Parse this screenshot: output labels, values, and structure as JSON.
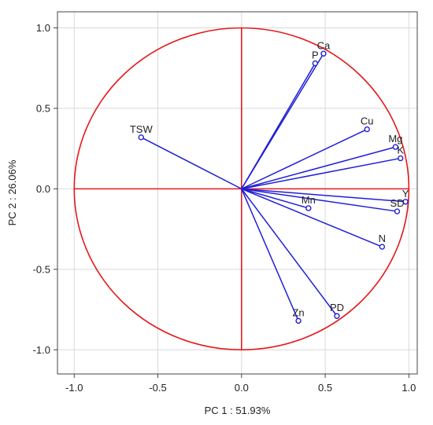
{
  "chart_data": {
    "type": "scatter",
    "subtype": "pca-loadings-circle",
    "xlabel": "PC 1 : 51.93%",
    "ylabel": "PC 2 : 26.06%",
    "xlim": [
      -1.1,
      1.05
    ],
    "ylim": [
      -1.15,
      1.1
    ],
    "xticks": [
      "-1.0",
      "-0.5",
      "0.0",
      "0.5",
      "1.0"
    ],
    "yticks": [
      "1.0",
      "0.5",
      "0.0",
      "-0.5",
      "-1.0"
    ],
    "grid": true,
    "unit_circle": true,
    "colors": {
      "circle": "#e31a1c",
      "vectors": "#1f1fd6",
      "grid": "#d9d9d9",
      "axes": "#444444"
    },
    "points": [
      {
        "label": "Ca",
        "x": 0.49,
        "y": 0.84
      },
      {
        "label": "P",
        "x": 0.44,
        "y": 0.78
      },
      {
        "label": "Cu",
        "x": 0.75,
        "y": 0.37
      },
      {
        "label": "Mg",
        "x": 0.92,
        "y": 0.26
      },
      {
        "label": "K",
        "x": 0.95,
        "y": 0.19
      },
      {
        "label": "TSW",
        "x": -0.6,
        "y": 0.32
      },
      {
        "label": "Y",
        "x": 0.98,
        "y": -0.08
      },
      {
        "label": "SD",
        "x": 0.93,
        "y": -0.14
      },
      {
        "label": "Mn",
        "x": 0.4,
        "y": -0.12
      },
      {
        "label": "N",
        "x": 0.84,
        "y": -0.36
      },
      {
        "label": "PD",
        "x": 0.57,
        "y": -0.79
      },
      {
        "label": "Zn",
        "x": 0.34,
        "y": -0.82
      }
    ]
  }
}
